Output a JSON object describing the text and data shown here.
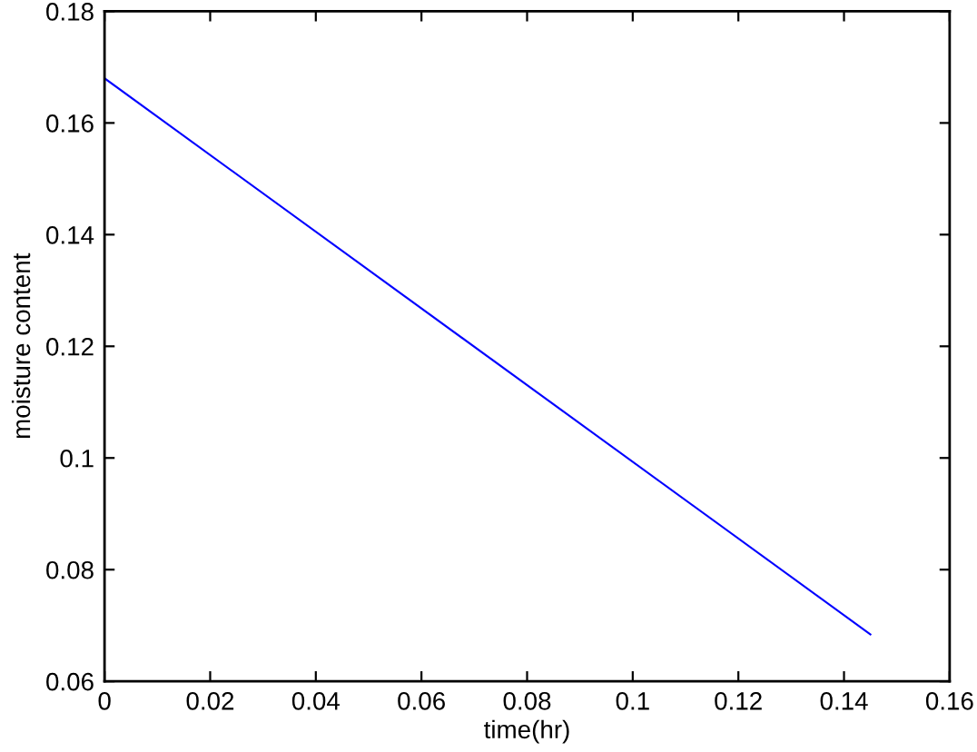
{
  "chart_data": {
    "type": "line",
    "xlabel": "time(hr)",
    "ylabel": "moisture content",
    "series": [
      {
        "color": "#0000ff",
        "x": [
          0,
          0.145
        ],
        "values": [
          0.168,
          0.0684
        ]
      }
    ],
    "xlim": [
      0,
      0.16
    ],
    "xticks": [
      0,
      0.02,
      0.04,
      0.06,
      0.08,
      0.1,
      0.12,
      0.14,
      0.16
    ],
    "ylim": [
      0.06,
      0.18
    ],
    "yticks": [
      0.06,
      0.08,
      0.1,
      0.12,
      0.14,
      0.16,
      0.18
    ],
    "grid": false,
    "marker": "none",
    "line_style": "solid"
  }
}
